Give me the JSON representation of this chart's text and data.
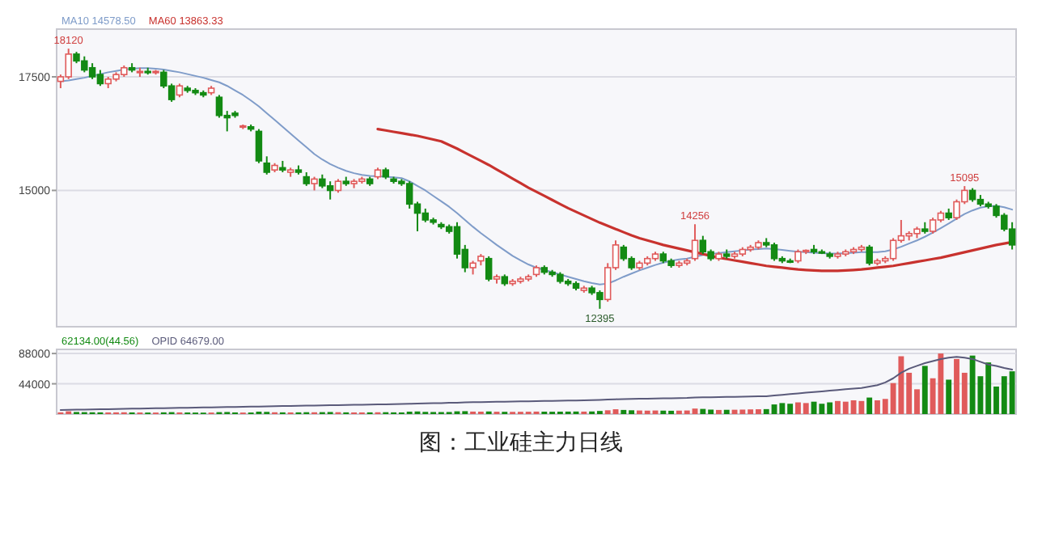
{
  "chart_data": [
    {
      "type": "candlestick",
      "title": "图：工业硅主力日线",
      "tick_labels": "y",
      "grid": "y",
      "legend": "top left",
      "ylim": [
        12000,
        18550
      ],
      "yticks": [
        15000,
        17500
      ],
      "categories": [
        null,
        null,
        null,
        null,
        null,
        null,
        null,
        null,
        null,
        null,
        null,
        null,
        null,
        null,
        null,
        null,
        null,
        null,
        null,
        null,
        null,
        null,
        null,
        null,
        null,
        null,
        null,
        null,
        null,
        null,
        null,
        null,
        null,
        null,
        null,
        null,
        null,
        null,
        null,
        null,
        null,
        null,
        null,
        null,
        null,
        null,
        null,
        null,
        null,
        null,
        null,
        null,
        null,
        null,
        null,
        null,
        null,
        null,
        null,
        null,
        null,
        null,
        null,
        null,
        null,
        null,
        null,
        null,
        null,
        null,
        null,
        null,
        null,
        null,
        null,
        null,
        null,
        null,
        null,
        null,
        null,
        null,
        null,
        null,
        null,
        null,
        null,
        null,
        null,
        null,
        null,
        null,
        null,
        null,
        null,
        null,
        null,
        null,
        null,
        null,
        null,
        null,
        null,
        null,
        null,
        null,
        null,
        null,
        null,
        null,
        null,
        null,
        null,
        null,
        null,
        null,
        null,
        null,
        null,
        null,
        null
      ],
      "ohlc": [
        [
          17400,
          17550,
          17250,
          17500
        ],
        [
          17500,
          18120,
          17450,
          18000
        ],
        [
          18000,
          18050,
          17800,
          17850
        ],
        [
          17850,
          17950,
          17600,
          17650
        ],
        [
          17700,
          17800,
          17450,
          17500
        ],
        [
          17550,
          17650,
          17300,
          17350
        ],
        [
          17350,
          17500,
          17250,
          17450
        ],
        [
          17450,
          17600,
          17400,
          17550
        ],
        [
          17550,
          17750,
          17500,
          17700
        ],
        [
          17700,
          17800,
          17600,
          17650
        ],
        [
          17600,
          17700,
          17500,
          17620
        ],
        [
          17620,
          17700,
          17550,
          17600
        ],
        [
          17600,
          17650,
          17550,
          17620
        ],
        [
          17600,
          17650,
          17250,
          17300
        ],
        [
          17300,
          17350,
          16950,
          17000
        ],
        [
          17100,
          17350,
          17050,
          17300
        ],
        [
          17250,
          17300,
          17150,
          17200
        ],
        [
          17200,
          17250,
          17100,
          17150
        ],
        [
          17150,
          17200,
          17050,
          17100
        ],
        [
          17150,
          17300,
          17100,
          17250
        ],
        [
          17050,
          17100,
          16600,
          16650
        ],
        [
          16650,
          16750,
          16300,
          16600
        ],
        [
          16700,
          16750,
          16600,
          16650
        ],
        [
          16400,
          16450,
          16350,
          16420
        ],
        [
          16400,
          16450,
          16300,
          16350
        ],
        [
          16300,
          16350,
          15600,
          15650
        ],
        [
          15600,
          15750,
          15350,
          15400
        ],
        [
          15450,
          15600,
          15400,
          15550
        ],
        [
          15500,
          15650,
          15400,
          15450
        ],
        [
          15400,
          15500,
          15300,
          15450
        ],
        [
          15450,
          15550,
          15350,
          15400
        ],
        [
          15300,
          15400,
          15100,
          15150
        ],
        [
          15150,
          15300,
          15000,
          15250
        ],
        [
          15250,
          15350,
          15050,
          15100
        ],
        [
          15100,
          15200,
          14800,
          15000
        ],
        [
          15000,
          15250,
          14950,
          15200
        ],
        [
          15200,
          15300,
          15100,
          15150
        ],
        [
          15150,
          15250,
          15050,
          15200
        ],
        [
          15200,
          15300,
          15150,
          15250
        ],
        [
          15250,
          15300,
          15100,
          15150
        ],
        [
          15300,
          15500,
          15250,
          15450
        ],
        [
          15450,
          15500,
          15250,
          15300
        ],
        [
          15250,
          15300,
          15150,
          15200
        ],
        [
          15200,
          15250,
          15100,
          15150
        ],
        [
          15150,
          15200,
          14600,
          14700
        ],
        [
          14700,
          14750,
          14100,
          14500
        ],
        [
          14500,
          14600,
          14300,
          14350
        ],
        [
          14350,
          14400,
          14250,
          14300
        ],
        [
          14250,
          14300,
          14150,
          14200
        ],
        [
          14200,
          14250,
          14050,
          14100
        ],
        [
          14200,
          14300,
          13500,
          13600
        ],
        [
          13700,
          13800,
          13200,
          13300
        ],
        [
          13300,
          13450,
          13150,
          13400
        ],
        [
          13450,
          13600,
          13350,
          13550
        ],
        [
          13500,
          13550,
          13000,
          13050
        ],
        [
          13050,
          13150,
          12950,
          13100
        ],
        [
          13100,
          13150,
          12900,
          12950
        ],
        [
          12950,
          13050,
          12900,
          13000
        ],
        [
          13000,
          13100,
          12950,
          13050
        ],
        [
          13050,
          13150,
          13000,
          13100
        ],
        [
          13150,
          13350,
          13100,
          13300
        ],
        [
          13300,
          13350,
          13150,
          13200
        ],
        [
          13200,
          13250,
          13100,
          13150
        ],
        [
          13150,
          13200,
          12950,
          13000
        ],
        [
          13000,
          13050,
          12900,
          12950
        ],
        [
          12950,
          13000,
          12800,
          12850
        ],
        [
          12800,
          12900,
          12750,
          12850
        ],
        [
          12850,
          12900,
          12700,
          12750
        ],
        [
          12750,
          12800,
          12395,
          12600
        ],
        [
          12600,
          13400,
          12550,
          13300
        ],
        [
          13300,
          13900,
          13250,
          13800
        ],
        [
          13750,
          13800,
          13450,
          13500
        ],
        [
          13500,
          13550,
          13250,
          13300
        ],
        [
          13300,
          13450,
          13250,
          13400
        ],
        [
          13400,
          13550,
          13350,
          13500
        ],
        [
          13500,
          13650,
          13450,
          13600
        ],
        [
          13600,
          13650,
          13400,
          13450
        ],
        [
          13450,
          13500,
          13300,
          13350
        ],
        [
          13350,
          13450,
          13300,
          13400
        ],
        [
          13400,
          13500,
          13350,
          13450
        ],
        [
          13500,
          14256,
          13450,
          13900
        ],
        [
          13900,
          14000,
          13600,
          13650
        ],
        [
          13650,
          13700,
          13450,
          13500
        ],
        [
          13500,
          13650,
          13450,
          13600
        ],
        [
          13600,
          13700,
          13500,
          13550
        ],
        [
          13550,
          13650,
          13500,
          13600
        ],
        [
          13600,
          13750,
          13550,
          13700
        ],
        [
          13700,
          13800,
          13650,
          13750
        ],
        [
          13750,
          13900,
          13700,
          13850
        ],
        [
          13850,
          13950,
          13750,
          13800
        ],
        [
          13800,
          13850,
          13450,
          13500
        ],
        [
          13500,
          13550,
          13400,
          13450
        ],
        [
          13450,
          13500,
          13400,
          13420
        ],
        [
          13450,
          13700,
          13400,
          13650
        ],
        [
          13650,
          13700,
          13600,
          13680
        ],
        [
          13700,
          13800,
          13600,
          13650
        ],
        [
          13650,
          13700,
          13600,
          13620
        ],
        [
          13600,
          13650,
          13500,
          13550
        ],
        [
          13550,
          13650,
          13500,
          13600
        ],
        [
          13600,
          13700,
          13550,
          13650
        ],
        [
          13650,
          13750,
          13600,
          13700
        ],
        [
          13700,
          13800,
          13650,
          13750
        ],
        [
          13750,
          13800,
          13350,
          13400
        ],
        [
          13400,
          13500,
          13350,
          13450
        ],
        [
          13450,
          13550,
          13400,
          13500
        ],
        [
          13500,
          13950,
          13450,
          13900
        ],
        [
          13900,
          14350,
          13850,
          14000
        ],
        [
          14000,
          14100,
          13900,
          14050
        ],
        [
          14050,
          14200,
          13950,
          14150
        ],
        [
          14150,
          14300,
          14050,
          14100
        ],
        [
          14100,
          14400,
          14050,
          14350
        ],
        [
          14350,
          14550,
          14300,
          14500
        ],
        [
          14500,
          14600,
          14350,
          14400
        ],
        [
          14400,
          14800,
          14350,
          14750
        ],
        [
          14750,
          15095,
          14700,
          15000
        ],
        [
          15000,
          15050,
          14750,
          14800
        ],
        [
          14800,
          14900,
          14650,
          14700
        ],
        [
          14700,
          14750,
          14600,
          14650
        ],
        [
          14650,
          14700,
          14400,
          14450
        ],
        [
          14450,
          14500,
          14100,
          14150
        ],
        [
          14150,
          14300,
          13700,
          13800
        ]
      ],
      "colors": [
        "#e05b5b",
        "#e05b5b",
        "#138a13",
        "#138a13",
        "#138a13",
        "#138a13",
        "#e05b5b",
        "#e05b5b",
        "#e05b5b",
        "#138a13",
        "#e05b5b",
        "#138a13",
        "#e05b5b",
        "#138a13",
        "#138a13",
        "#e05b5b",
        "#138a13",
        "#138a13",
        "#138a13",
        "#e05b5b",
        "#138a13",
        "#138a13",
        "#138a13",
        "#e05b5b",
        "#138a13",
        "#138a13",
        "#138a13",
        "#e05b5b",
        "#138a13",
        "#e05b5b",
        "#138a13",
        "#138a13",
        "#e05b5b",
        "#138a13",
        "#138a13",
        "#e05b5b",
        "#138a13",
        "#e05b5b",
        "#e05b5b",
        "#138a13",
        "#e05b5b",
        "#138a13",
        "#138a13",
        "#138a13",
        "#138a13",
        "#138a13",
        "#138a13",
        "#138a13",
        "#138a13",
        "#138a13",
        "#138a13",
        "#138a13",
        "#e05b5b",
        "#e05b5b",
        "#138a13",
        "#e05b5b",
        "#138a13",
        "#e05b5b",
        "#e05b5b",
        "#e05b5b",
        "#e05b5b",
        "#138a13",
        "#138a13",
        "#138a13",
        "#138a13",
        "#138a13",
        "#e05b5b",
        "#138a13",
        "#138a13",
        "#e05b5b",
        "#e05b5b",
        "#138a13",
        "#138a13",
        "#e05b5b",
        "#e05b5b",
        "#e05b5b",
        "#138a13",
        "#138a13",
        "#e05b5b",
        "#e05b5b",
        "#e05b5b",
        "#138a13",
        "#138a13",
        "#e05b5b",
        "#138a13",
        "#e05b5b",
        "#e05b5b",
        "#e05b5b",
        "#e05b5b",
        "#138a13",
        "#138a13",
        "#138a13",
        "#138a13",
        "#e05b5b",
        "#e05b5b",
        "#138a13",
        "#138a13",
        "#138a13",
        "#e05b5b",
        "#e05b5b",
        "#e05b5b",
        "#e05b5b",
        "#138a13",
        "#e05b5b",
        "#e05b5b",
        "#e05b5b",
        "#e05b5b",
        "#e05b5b",
        "#e05b5b",
        "#138a13",
        "#e05b5b",
        "#e05b5b",
        "#138a13",
        "#e05b5b",
        "#e05b5b",
        "#138a13",
        "#138a13",
        "#138a13",
        "#138a13",
        "#138a13",
        "#138a13"
      ],
      "series": [
        {
          "type": "line",
          "name": "MA10 14578.50",
          "color": "#7f9cc9",
          "values": [
            17400,
            17420,
            17450,
            17480,
            17520,
            17560,
            17600,
            17630,
            17660,
            17680,
            17690,
            17690,
            17680,
            17660,
            17630,
            17600,
            17560,
            17520,
            17480,
            17430,
            17380,
            17300,
            17200,
            17100,
            16980,
            16850,
            16700,
            16550,
            16400,
            16250,
            16100,
            15950,
            15800,
            15680,
            15580,
            15500,
            15430,
            15380,
            15340,
            15320,
            15310,
            15300,
            15290,
            15270,
            15200,
            15100,
            15000,
            14880,
            14760,
            14640,
            14500,
            14350,
            14200,
            14060,
            13930,
            13800,
            13680,
            13560,
            13460,
            13370,
            13300,
            13250,
            13200,
            13150,
            13100,
            13050,
            13000,
            12960,
            12930,
            12950,
            13020,
            13100,
            13170,
            13240,
            13300,
            13360,
            13410,
            13450,
            13480,
            13500,
            13540,
            13580,
            13600,
            13620,
            13640,
            13660,
            13680,
            13700,
            13710,
            13720,
            13710,
            13690,
            13670,
            13650,
            13640,
            13630,
            13620,
            13610,
            13610,
            13620,
            13630,
            13640,
            13640,
            13640,
            13660,
            13700,
            13760,
            13830,
            13900,
            13980,
            14070,
            14170,
            14270,
            14380,
            14480,
            14560,
            14620,
            14650,
            14660,
            14630,
            14578.5
          ]
        },
        {
          "type": "line",
          "name": "MA60 13863.33",
          "color": "#c8322e",
          "values": [
            null,
            null,
            null,
            null,
            null,
            null,
            null,
            null,
            null,
            null,
            null,
            null,
            null,
            null,
            null,
            null,
            null,
            null,
            null,
            null,
            null,
            null,
            null,
            null,
            null,
            null,
            null,
            null,
            null,
            null,
            null,
            null,
            null,
            null,
            null,
            null,
            null,
            null,
            null,
            null,
            16350,
            16320,
            16290,
            16260,
            16230,
            16200,
            16160,
            16120,
            16080,
            16000,
            15920,
            15830,
            15740,
            15650,
            15560,
            15460,
            15360,
            15260,
            15160,
            15060,
            14970,
            14880,
            14790,
            14700,
            14610,
            14530,
            14450,
            14370,
            14290,
            14220,
            14150,
            14080,
            14010,
            13950,
            13900,
            13850,
            13800,
            13760,
            13720,
            13680,
            13640,
            13600,
            13560,
            13520,
            13490,
            13460,
            13430,
            13400,
            13370,
            13340,
            13320,
            13300,
            13280,
            13260,
            13250,
            13240,
            13230,
            13230,
            13230,
            13240,
            13250,
            13260,
            13280,
            13300,
            13320,
            13340,
            13370,
            13400,
            13430,
            13460,
            13490,
            13520,
            13560,
            13600,
            13640,
            13680,
            13720,
            13760,
            13800,
            13830,
            13863.33
          ]
        }
      ],
      "annotations": [
        {
          "text": "18120",
          "y": 18120
        },
        {
          "text": "12395",
          "y": 12395
        },
        {
          "text": "14256",
          "y": 14256
        },
        {
          "text": "15095",
          "y": 15095
        }
      ]
    },
    {
      "type": "bar",
      "tick_labels": "y",
      "grid": "y",
      "legend": "top left",
      "ylim": [
        0,
        94000
      ],
      "yticks": [
        44000,
        88000
      ],
      "categories": [
        null,
        null,
        null,
        null,
        null,
        null,
        null,
        null,
        null,
        null,
        null,
        null,
        null,
        null,
        null,
        null,
        null,
        null,
        null,
        null,
        null,
        null,
        null,
        null,
        null,
        null,
        null,
        null,
        null,
        null,
        null,
        null,
        null,
        null,
        null,
        null,
        null,
        null,
        null,
        null,
        null,
        null,
        null,
        null,
        null,
        null,
        null,
        null,
        null,
        null,
        null,
        null,
        null,
        null,
        null,
        null,
        null,
        null,
        null,
        null,
        null,
        null,
        null,
        null,
        null,
        null,
        null,
        null,
        null,
        null,
        null,
        null,
        null,
        null,
        null,
        null,
        null,
        null,
        null,
        null,
        null,
        null,
        null,
        null,
        null,
        null,
        null,
        null,
        null,
        null,
        null,
        null,
        null,
        null,
        null,
        null,
        null,
        null,
        null,
        null,
        null,
        null,
        null,
        null,
        null,
        null,
        null,
        null,
        null,
        null,
        null,
        null,
        null,
        null,
        null,
        null,
        null,
        null,
        null,
        null,
        null
      ],
      "series": [
        {
          "type": "bar",
          "name": "62134.00(44.56)",
          "colors": [
            "#e05b5b",
            "#e05b5b",
            "#138a13",
            "#138a13",
            "#138a13",
            "#138a13",
            "#e05b5b",
            "#e05b5b",
            "#e05b5b",
            "#138a13",
            "#e05b5b",
            "#138a13",
            "#e05b5b",
            "#138a13",
            "#138a13",
            "#e05b5b",
            "#138a13",
            "#138a13",
            "#138a13",
            "#e05b5b",
            "#138a13",
            "#138a13",
            "#138a13",
            "#e05b5b",
            "#138a13",
            "#138a13",
            "#138a13",
            "#e05b5b",
            "#138a13",
            "#e05b5b",
            "#138a13",
            "#138a13",
            "#e05b5b",
            "#138a13",
            "#138a13",
            "#e05b5b",
            "#138a13",
            "#e05b5b",
            "#e05b5b",
            "#138a13",
            "#e05b5b",
            "#138a13",
            "#138a13",
            "#138a13",
            "#138a13",
            "#138a13",
            "#138a13",
            "#138a13",
            "#138a13",
            "#138a13",
            "#138a13",
            "#138a13",
            "#e05b5b",
            "#e05b5b",
            "#138a13",
            "#e05b5b",
            "#138a13",
            "#e05b5b",
            "#e05b5b",
            "#e05b5b",
            "#e05b5b",
            "#138a13",
            "#138a13",
            "#138a13",
            "#138a13",
            "#138a13",
            "#e05b5b",
            "#138a13",
            "#138a13",
            "#e05b5b",
            "#e05b5b",
            "#138a13",
            "#138a13",
            "#e05b5b",
            "#e05b5b",
            "#e05b5b",
            "#138a13",
            "#138a13",
            "#e05b5b",
            "#e05b5b",
            "#e05b5b",
            "#138a13",
            "#138a13",
            "#e05b5b",
            "#138a13",
            "#e05b5b",
            "#e05b5b",
            "#e05b5b",
            "#e05b5b",
            "#138a13",
            "#138a13",
            "#138a13",
            "#138a13",
            "#e05b5b",
            "#e05b5b",
            "#138a13",
            "#138a13",
            "#138a13",
            "#e05b5b",
            "#e05b5b",
            "#e05b5b",
            "#e05b5b",
            "#138a13",
            "#e05b5b",
            "#e05b5b",
            "#e05b5b",
            "#e05b5b",
            "#e05b5b",
            "#e05b5b",
            "#138a13",
            "#e05b5b",
            "#e05b5b",
            "#138a13",
            "#e05b5b",
            "#e05b5b",
            "#138a13",
            "#138a13",
            "#138a13",
            "#138a13",
            "#138a13",
            "#138a13"
          ],
          "values": [
            2500,
            4000,
            3000,
            2800,
            2600,
            2500,
            2400,
            2500,
            2600,
            2400,
            2300,
            2200,
            2200,
            2500,
            2800,
            2400,
            2300,
            2200,
            2100,
            2200,
            2800,
            3000,
            2400,
            2200,
            2300,
            3500,
            3200,
            2600,
            2500,
            2400,
            2500,
            2700,
            2600,
            2800,
            3000,
            2700,
            2500,
            2400,
            2400,
            2500,
            2600,
            2700,
            2500,
            2400,
            3500,
            3800,
            3200,
            3000,
            2900,
            3000,
            4000,
            4200,
            3600,
            3500,
            3800,
            3400,
            3300,
            3200,
            3300,
            3400,
            3600,
            3500,
            3400,
            3500,
            3600,
            3700,
            3600,
            3800,
            4500,
            5500,
            7000,
            6000,
            5500,
            5200,
            5000,
            5200,
            5000,
            4800,
            5000,
            5200,
            8000,
            7500,
            6500,
            6000,
            6200,
            6300,
            6500,
            6800,
            7000,
            7200,
            14000,
            16000,
            15000,
            17000,
            16000,
            18000,
            15000,
            17000,
            19000,
            18000,
            20000,
            19000,
            24000,
            20000,
            22000,
            45000,
            84000,
            60000,
            36000,
            70000,
            52000,
            88000,
            50000,
            80000,
            60000,
            85000,
            55000,
            75000,
            40000,
            55000,
            62134
          ]
        },
        {
          "type": "line",
          "name": "OPID 64679.00",
          "color": "#5a5a7a",
          "values": [
            6000,
            6200,
            6400,
            6600,
            6800,
            7000,
            7200,
            7400,
            7600,
            7800,
            8000,
            8200,
            8400,
            8600,
            8800,
            9000,
            9200,
            9400,
            9600,
            9800,
            10000,
            10200,
            10400,
            10600,
            10800,
            11000,
            11200,
            11400,
            11600,
            11800,
            12000,
            12200,
            12400,
            12600,
            12800,
            13000,
            13200,
            13400,
            13600,
            13800,
            14000,
            14200,
            14500,
            14800,
            15000,
            15300,
            15600,
            15800,
            16000,
            16300,
            16600,
            16900,
            17200,
            17400,
            17600,
            17800,
            18000,
            18200,
            18400,
            18600,
            18800,
            19000,
            19200,
            19400,
            19600,
            19800,
            20000,
            20200,
            20500,
            21000,
            21500,
            21800,
            22000,
            22200,
            22400,
            22600,
            22800,
            23000,
            23200,
            23400,
            24000,
            24300,
            24500,
            24700,
            24900,
            25100,
            25300,
            25500,
            25700,
            26000,
            27000,
            28000,
            29000,
            30000,
            31000,
            32000,
            33000,
            34000,
            35000,
            36000,
            37000,
            38000,
            40000,
            42000,
            46000,
            52000,
            60000,
            66000,
            70000,
            74000,
            77000,
            80000,
            82000,
            83000,
            82000,
            80000,
            76000,
            72000,
            70000,
            67000,
            64679
          ]
        }
      ]
    }
  ]
}
